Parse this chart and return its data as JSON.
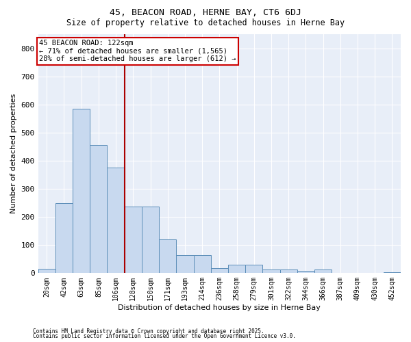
{
  "title1": "45, BEACON ROAD, HERNE BAY, CT6 6DJ",
  "title2": "Size of property relative to detached houses in Herne Bay",
  "xlabel": "Distribution of detached houses by size in Herne Bay",
  "ylabel": "Number of detached properties",
  "categories": [
    "20sqm",
    "42sqm",
    "63sqm",
    "85sqm",
    "106sqm",
    "128sqm",
    "150sqm",
    "171sqm",
    "193sqm",
    "214sqm",
    "236sqm",
    "258sqm",
    "279sqm",
    "301sqm",
    "322sqm",
    "344sqm",
    "366sqm",
    "387sqm",
    "409sqm",
    "430sqm",
    "452sqm"
  ],
  "values": [
    15,
    248,
    585,
    455,
    375,
    237,
    237,
    120,
    65,
    65,
    17,
    30,
    30,
    12,
    12,
    8,
    12,
    0,
    0,
    0,
    3
  ],
  "bar_color": "#c8d9ef",
  "bar_edge_color": "#5b8db8",
  "vline_color": "#aa0000",
  "annotation_text": "45 BEACON ROAD: 122sqm\n← 71% of detached houses are smaller (1,565)\n28% of semi-detached houses are larger (612) →",
  "annotation_box_color": "#cc0000",
  "background_color": "#e8eef8",
  "footer1": "Contains HM Land Registry data © Crown copyright and database right 2025.",
  "footer2": "Contains public sector information licensed under the Open Government Licence v3.0.",
  "ylim": [
    0,
    850
  ],
  "yticks": [
    0,
    100,
    200,
    300,
    400,
    500,
    600,
    700,
    800
  ]
}
